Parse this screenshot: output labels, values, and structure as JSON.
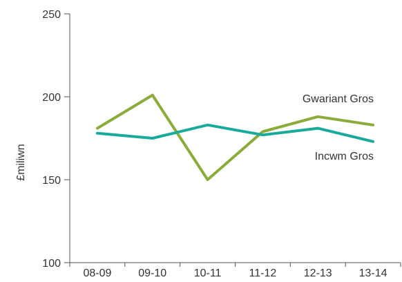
{
  "chart_data": {
    "type": "line",
    "title": "",
    "xlabel": "",
    "ylabel": "£miliwn",
    "categories": [
      "08-09",
      "09-10",
      "10-11",
      "11-12",
      "12-13",
      "13-14"
    ],
    "ylim": [
      100,
      250
    ],
    "yticks": [
      100,
      150,
      200,
      250
    ],
    "grid": false,
    "legend": "inline labels",
    "series": [
      {
        "name": "Gwariant Gros",
        "color": "#8bab3a",
        "values": [
          181,
          201,
          150,
          179,
          188,
          183
        ]
      },
      {
        "name": "Incwm Gros",
        "color": "#1aaa9b",
        "values": [
          178,
          175,
          183,
          177,
          181,
          173
        ]
      }
    ]
  }
}
